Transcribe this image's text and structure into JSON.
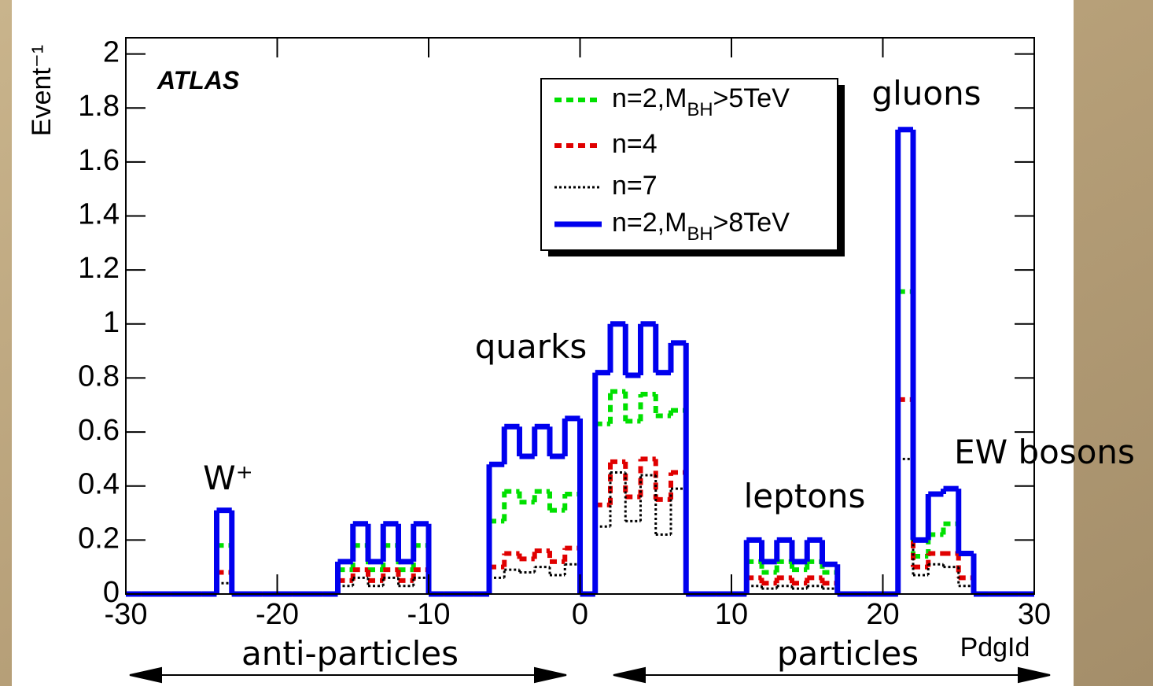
{
  "chart_data": {
    "type": "histogram",
    "title": "ATLAS",
    "x_label": "PdgId",
    "y_label": "Event⁻¹",
    "bins": [
      -30,
      -29,
      -28,
      -27,
      -26,
      -25,
      -24,
      -23,
      -22,
      -21,
      -20,
      -19,
      -18,
      -17,
      -16,
      -15,
      -14,
      -13,
      -12,
      -11,
      -10,
      -9,
      -8,
      -7,
      -6,
      -5,
      -4,
      -3,
      -2,
      -1,
      0,
      1,
      2,
      3,
      4,
      5,
      6,
      7,
      8,
      9,
      10,
      11,
      12,
      13,
      14,
      15,
      16,
      17,
      18,
      19,
      20,
      21,
      22,
      23,
      24,
      25,
      26,
      27,
      28,
      29,
      30
    ],
    "series": [
      {
        "name": "n=2,M_{BH}>5TeV",
        "color": "#00e000",
        "style": "dashed",
        "values": [
          0,
          0,
          0,
          0,
          0,
          0,
          0.18,
          0,
          0,
          0,
          0,
          0,
          0,
          0,
          0.09,
          0.18,
          0.09,
          0.18,
          0.09,
          0.18,
          0,
          0,
          0,
          0,
          0.27,
          0.38,
          0.34,
          0.38,
          0.31,
          0.37,
          0,
          0.63,
          0.75,
          0.64,
          0.74,
          0.66,
          0.68,
          0,
          0,
          0,
          0,
          0.12,
          0.08,
          0.12,
          0.09,
          0.12,
          0.08,
          0,
          0,
          0,
          0,
          1.12,
          0.14,
          0.22,
          0.26,
          0.15,
          0,
          0,
          0,
          0
        ]
      },
      {
        "name": "n=4",
        "color": "#e00000",
        "style": "dashed",
        "values": [
          0,
          0,
          0,
          0,
          0,
          0,
          0.08,
          0,
          0,
          0,
          0,
          0,
          0,
          0,
          0.05,
          0.09,
          0.05,
          0.09,
          0.05,
          0.09,
          0,
          0,
          0,
          0,
          0.1,
          0.15,
          0.13,
          0.16,
          0.12,
          0.17,
          0,
          0.33,
          0.49,
          0.36,
          0.5,
          0.35,
          0.45,
          0,
          0,
          0,
          0,
          0.06,
          0.04,
          0.06,
          0.04,
          0.06,
          0.04,
          0,
          0,
          0,
          0,
          0.72,
          0.1,
          0.15,
          0.15,
          0.06,
          0,
          0,
          0,
          0
        ]
      },
      {
        "name": "n=7",
        "color": "#000000",
        "style": "dotted",
        "values": [
          0,
          0,
          0,
          0,
          0,
          0,
          0.04,
          0,
          0,
          0,
          0,
          0,
          0,
          0,
          0.03,
          0.06,
          0.03,
          0.06,
          0.03,
          0.06,
          0,
          0,
          0,
          0,
          0.06,
          0.09,
          0.08,
          0.1,
          0.07,
          0.11,
          0,
          0.25,
          0.45,
          0.27,
          0.44,
          0.22,
          0.39,
          0,
          0,
          0,
          0,
          0.03,
          0.02,
          0.03,
          0.02,
          0.03,
          0.02,
          0,
          0,
          0,
          0,
          0.5,
          0.07,
          0.11,
          0.1,
          0.03,
          0,
          0,
          0,
          0
        ]
      },
      {
        "name": "n=2,M_{BH}>8TeV",
        "color": "#0000ee",
        "style": "solid",
        "values": [
          0,
          0,
          0,
          0,
          0,
          0,
          0.31,
          0,
          0,
          0,
          0,
          0,
          0,
          0,
          0.12,
          0.26,
          0.12,
          0.26,
          0.12,
          0.26,
          0,
          0,
          0,
          0,
          0.48,
          0.62,
          0.51,
          0.62,
          0.51,
          0.65,
          0,
          0.82,
          1.0,
          0.81,
          1.0,
          0.82,
          0.93,
          0,
          0,
          0,
          0,
          0.2,
          0.12,
          0.2,
          0.12,
          0.2,
          0.11,
          0,
          0,
          0,
          0,
          1.72,
          0.2,
          0.37,
          0.39,
          0.15,
          0,
          0,
          0,
          0
        ]
      }
    ],
    "xlim": [
      -30,
      30
    ],
    "xticks": [
      -30,
      -20,
      -10,
      0,
      10,
      20,
      30
    ],
    "ylim": [
      0,
      2.06
    ],
    "yticks": [
      0,
      0.2,
      0.4,
      0.6,
      0.8,
      1,
      1.2,
      1.4,
      1.6,
      1.8,
      2
    ],
    "annotations": [
      "W⁺",
      "quarks",
      "leptons",
      "gluons",
      "EW bosons",
      "anti-particles",
      "particles"
    ]
  }
}
